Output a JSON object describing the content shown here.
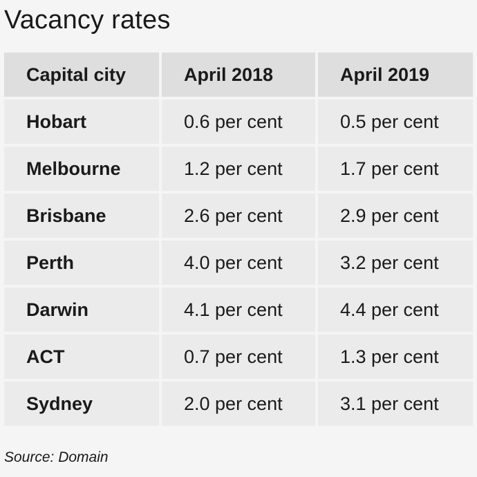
{
  "title": "Vacancy rates",
  "table": {
    "headers": [
      "Capital city",
      "April 2018",
      "April 2019"
    ],
    "rows": [
      [
        "Hobart",
        "0.6 per cent",
        "0.5 per cent"
      ],
      [
        "Melbourne",
        "1.2 per cent",
        "1.7 per cent"
      ],
      [
        "Brisbane",
        "2.6 per cent",
        "2.9 per cent"
      ],
      [
        "Perth",
        "4.0 per cent",
        "3.2 per cent"
      ],
      [
        "Darwin",
        "4.1 per cent",
        "4.4 per cent"
      ],
      [
        "ACT",
        "0.7 per cent",
        "1.3 per cent"
      ],
      [
        "Sydney",
        "2.0 per cent",
        "3.1 per cent"
      ]
    ]
  },
  "source": "Source: Domain"
}
